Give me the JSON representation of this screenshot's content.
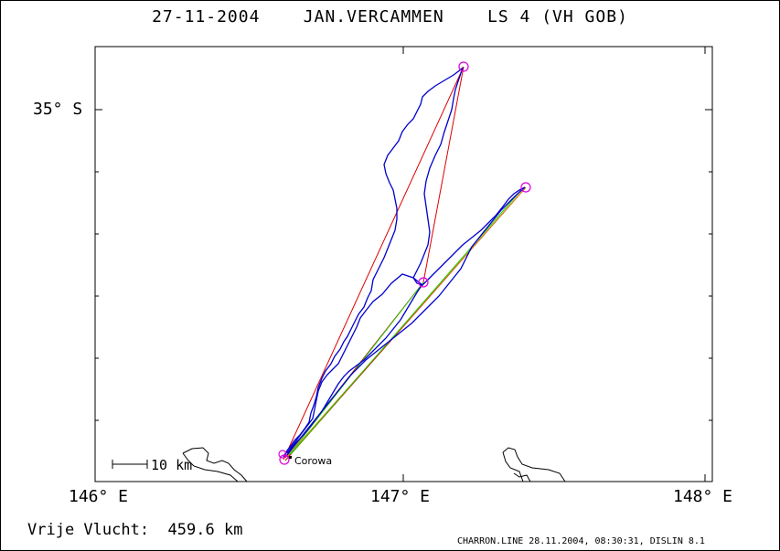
{
  "title": "27-11-2004    JAN.VERCAMMEN    LS 4 (VH GOB)",
  "y_axis": {
    "label_35S": "35° S"
  },
  "x_axis": {
    "labels": [
      "146° E",
      "147° E",
      "148° E"
    ]
  },
  "scale_bar": {
    "label": "10 km"
  },
  "places": [
    {
      "name": "Corowa"
    }
  ],
  "footer": {
    "free_flight_label": "Vrije Vlucht:",
    "free_flight_value": "459.6 km",
    "credit": "CHARRON.LINE 28.11.2004, 08:30:31, DISLIN 8.1"
  },
  "colors": {
    "track": "#0000cc",
    "course_red": "#dd0000",
    "course_green": "#22cc00",
    "course_orange": "#cc8800",
    "turnpoint": "#dd00dd",
    "terrain": "#000000"
  }
}
